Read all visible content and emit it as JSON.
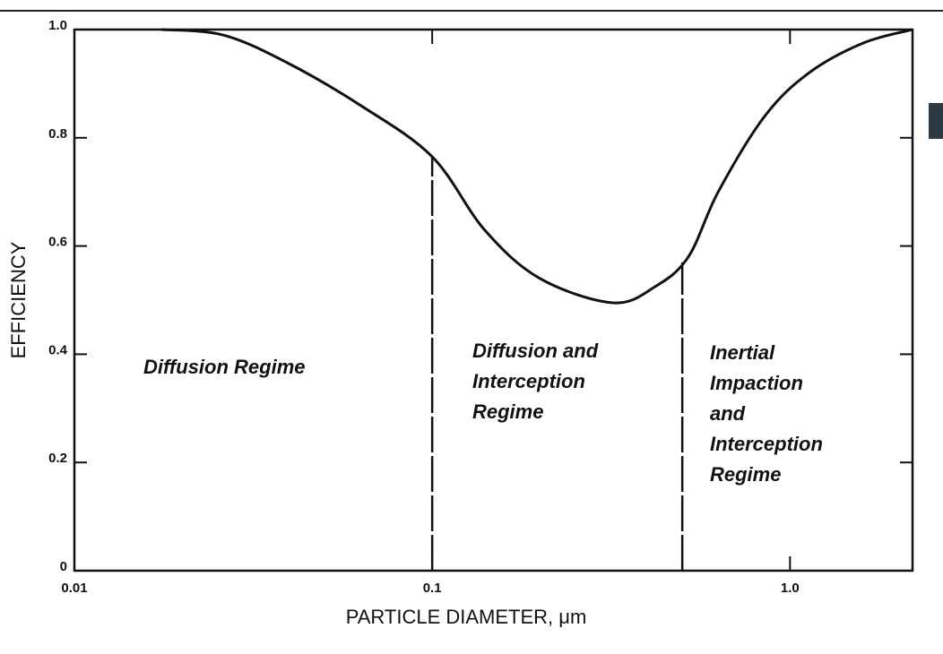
{
  "chart_data": {
    "type": "line",
    "x_label": "PARTICLE DIAMETER, μm",
    "y_label": "EFFICIENCY",
    "x": [
      0.0175,
      0.026,
      0.039,
      0.063,
      0.1,
      0.14,
      0.2,
      0.32,
      0.42,
      0.52,
      0.63,
      0.85,
      1.13,
      1.6,
      2.2
    ],
    "series": [
      {
        "color": "#111111",
        "values": [
          1.0,
          0.99,
          0.94,
          0.86,
          0.765,
          0.63,
          0.54,
          0.495,
          0.525,
          0.58,
          0.7,
          0.84,
          0.92,
          0.975,
          1.0
        ]
      }
    ],
    "xlim": [
      0.01,
      2.2
    ],
    "log_x": true,
    "xticks": [
      0.01,
      0.1,
      {
        "value": 1,
        "label": "1.0"
      }
    ],
    "ylim": [
      0,
      1
    ],
    "yticks": [
      0,
      0.2,
      0.4,
      0.6,
      0.8,
      {
        "value": 1,
        "label": "1.0"
      }
    ],
    "boundaries": [
      0.1,
      0.5
    ],
    "annotations": [
      [
        "Diffusion Regime"
      ],
      [
        "Diffusion and",
        "Interception",
        "Regime"
      ],
      [
        "Inertial",
        "Impaction",
        "and",
        "Interception",
        "Regime"
      ]
    ]
  }
}
